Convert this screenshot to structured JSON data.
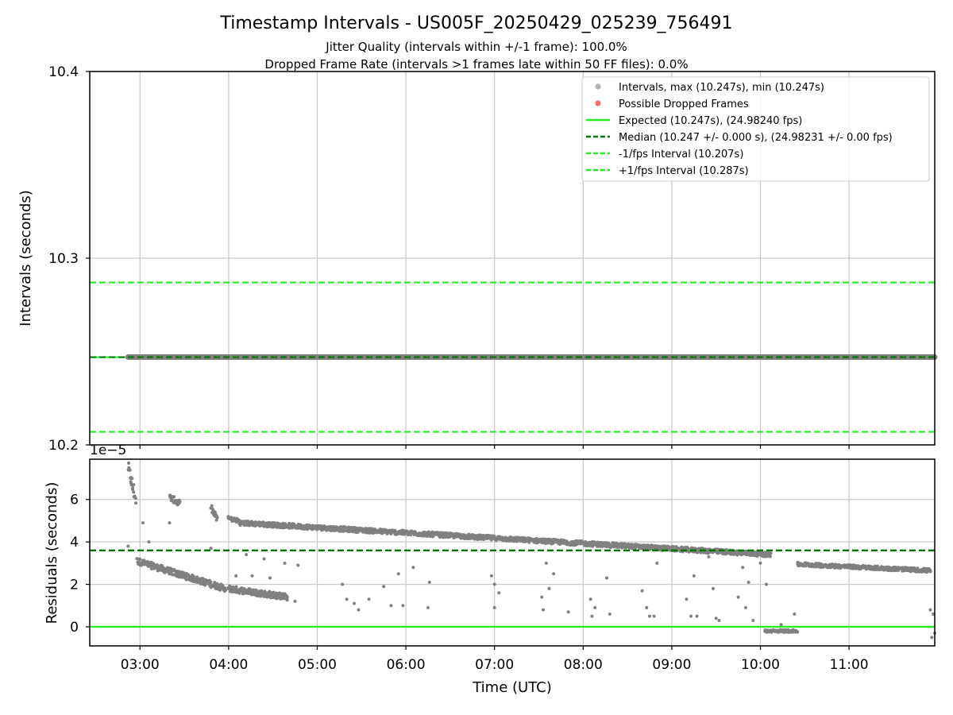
{
  "chart_data": {
    "type": "scatter",
    "title": "Timestamp Intervals - US005F_20250429_025239_756491",
    "subtitle_lines": [
      "Jitter Quality (intervals within +/-1 frame): 100.0%",
      "Dropped Frame Rate (intervals >1 frames late within 50 FF files): 0.0%"
    ],
    "colors": {
      "points": "#808080",
      "dropped": "#f07070",
      "expected": "#22ee22",
      "median": "#007700",
      "bounds": "#22ee22",
      "grid": "#c8c8c8"
    },
    "x_axis": {
      "label": "Time (UTC)",
      "range": [
        "02:26",
        "11:58"
      ],
      "ticks": [
        "03:00",
        "04:00",
        "05:00",
        "06:00",
        "07:00",
        "08:00",
        "09:00",
        "10:00",
        "11:00"
      ]
    },
    "top_panel": {
      "ylabel": "Intervals (seconds)",
      "ylim": [
        10.2,
        10.4
      ],
      "yticks": [
        "10.2",
        "10.3",
        "10.4"
      ],
      "expected": 10.247,
      "median": 10.247,
      "minus_one_fps": 10.207,
      "plus_one_fps": 10.287,
      "interval_points": {
        "start": "02:52",
        "end": "11:58",
        "value": 10.247
      },
      "legend_position": "top-right",
      "legend": [
        {
          "label": "Intervals, max (10.247s), min (10.247s)",
          "style": "gray-dot"
        },
        {
          "label": "Possible Dropped Frames",
          "style": "red-dot"
        },
        {
          "label": "Expected (10.247s), (24.98240 fps)",
          "style": "green-solid"
        },
        {
          "label": "Median (10.247 +/- 0.000 s), (24.98231 +/- 0.00 fps)",
          "style": "darkgreen-dashed"
        },
        {
          "label": "-1/fps Interval (10.207s)",
          "style": "green-dashed"
        },
        {
          "label": "+1/fps Interval (10.287s)",
          "style": "green-dashed"
        }
      ]
    },
    "bottom_panel": {
      "ylabel": "Residuals (seconds)",
      "scale_label": "1e−5",
      "ylim": [
        -0.9,
        7.9
      ],
      "yticks": [
        "0",
        "2",
        "4",
        "6"
      ],
      "zero_line": 0,
      "median_line": 3.6,
      "residual_segments": [
        {
          "start": "02:52",
          "end": "02:57",
          "from": 7.5,
          "to": 6.0,
          "spread": 0.6
        },
        {
          "start": "02:58",
          "end": "03:58",
          "from": 3.1,
          "to": 1.8,
          "spread": 0.3
        },
        {
          "start": "03:20",
          "end": "03:27",
          "from": 6.1,
          "to": 5.8,
          "spread": 0.3
        },
        {
          "start": "03:48",
          "end": "03:52",
          "from": 5.6,
          "to": 5.1,
          "spread": 0.3
        },
        {
          "start": "04:00",
          "end": "04:40",
          "from": 1.8,
          "to": 1.4,
          "spread": 0.3
        },
        {
          "start": "04:00",
          "end": "04:07",
          "from": 5.1,
          "to": 5.0,
          "spread": 0.2
        },
        {
          "start": "04:07",
          "end": "10:07",
          "from": 4.9,
          "to": 3.4,
          "spread": 0.22
        },
        {
          "start": "10:03",
          "end": "10:25",
          "from": -0.2,
          "to": -0.2,
          "spread": 0.12
        },
        {
          "start": "10:25",
          "end": "11:55",
          "from": 2.95,
          "to": 2.65,
          "spread": 0.18
        }
      ],
      "scattered_points": [
        {
          "t": "02:52",
          "v": 3.8
        },
        {
          "t": "03:02",
          "v": 4.9
        },
        {
          "t": "03:06",
          "v": 4.0
        },
        {
          "t": "03:20",
          "v": 4.9
        },
        {
          "t": "03:48",
          "v": 3.7
        },
        {
          "t": "04:05",
          "v": 2.4
        },
        {
          "t": "04:12",
          "v": 3.4
        },
        {
          "t": "04:16",
          "v": 2.4
        },
        {
          "t": "04:24",
          "v": 3.2
        },
        {
          "t": "04:28",
          "v": 2.3
        },
        {
          "t": "04:38",
          "v": 3.0
        },
        {
          "t": "04:47",
          "v": 2.9
        },
        {
          "t": "04:45",
          "v": 1.2
        },
        {
          "t": "05:17",
          "v": 2.0
        },
        {
          "t": "05:20",
          "v": 1.3
        },
        {
          "t": "05:25",
          "v": 1.1
        },
        {
          "t": "05:28",
          "v": 0.8
        },
        {
          "t": "05:35",
          "v": 1.3
        },
        {
          "t": "05:45",
          "v": 1.9
        },
        {
          "t": "05:50",
          "v": 1.0
        },
        {
          "t": "05:55",
          "v": 2.5
        },
        {
          "t": "05:58",
          "v": 1.0
        },
        {
          "t": "06:05",
          "v": 2.8
        },
        {
          "t": "06:15",
          "v": 0.9
        },
        {
          "t": "06:16",
          "v": 2.1
        },
        {
          "t": "06:58",
          "v": 2.4
        },
        {
          "t": "07:00",
          "v": 0.9
        },
        {
          "t": "07:00",
          "v": 2.0
        },
        {
          "t": "07:03",
          "v": 1.6
        },
        {
          "t": "07:32",
          "v": 1.4
        },
        {
          "t": "07:33",
          "v": 0.8
        },
        {
          "t": "07:35",
          "v": 3.0
        },
        {
          "t": "07:37",
          "v": 1.8
        },
        {
          "t": "07:40",
          "v": 2.5
        },
        {
          "t": "07:50",
          "v": 0.7
        },
        {
          "t": "08:05",
          "v": 1.3
        },
        {
          "t": "08:06",
          "v": 0.5
        },
        {
          "t": "08:08",
          "v": 0.9
        },
        {
          "t": "08:16",
          "v": 2.3
        },
        {
          "t": "08:18",
          "v": 0.6
        },
        {
          "t": "08:40",
          "v": 1.7
        },
        {
          "t": "08:43",
          "v": 0.9
        },
        {
          "t": "08:45",
          "v": 0.5
        },
        {
          "t": "08:48",
          "v": 0.5
        },
        {
          "t": "08:50",
          "v": 3.0
        },
        {
          "t": "09:10",
          "v": 1.3
        },
        {
          "t": "09:13",
          "v": 0.5
        },
        {
          "t": "09:15",
          "v": 2.4
        },
        {
          "t": "09:17",
          "v": 0.5
        },
        {
          "t": "09:25",
          "v": 3.3
        },
        {
          "t": "09:28",
          "v": 1.8
        },
        {
          "t": "09:30",
          "v": 0.4
        },
        {
          "t": "09:32",
          "v": 0.3
        },
        {
          "t": "09:45",
          "v": 1.4
        },
        {
          "t": "09:48",
          "v": 2.8
        },
        {
          "t": "09:50",
          "v": 0.9
        },
        {
          "t": "09:52",
          "v": 2.1
        },
        {
          "t": "09:55",
          "v": 0.3
        },
        {
          "t": "10:00",
          "v": 3.0
        },
        {
          "t": "10:04",
          "v": 2.0
        },
        {
          "t": "10:14",
          "v": 0.1
        },
        {
          "t": "10:23",
          "v": 0.6
        },
        {
          "t": "11:55",
          "v": 2.6
        },
        {
          "t": "11:55",
          "v": 0.8
        },
        {
          "t": "11:56",
          "v": -0.5
        },
        {
          "t": "11:57",
          "v": 0.6
        },
        {
          "t": "11:58",
          "v": -0.3
        }
      ]
    }
  }
}
